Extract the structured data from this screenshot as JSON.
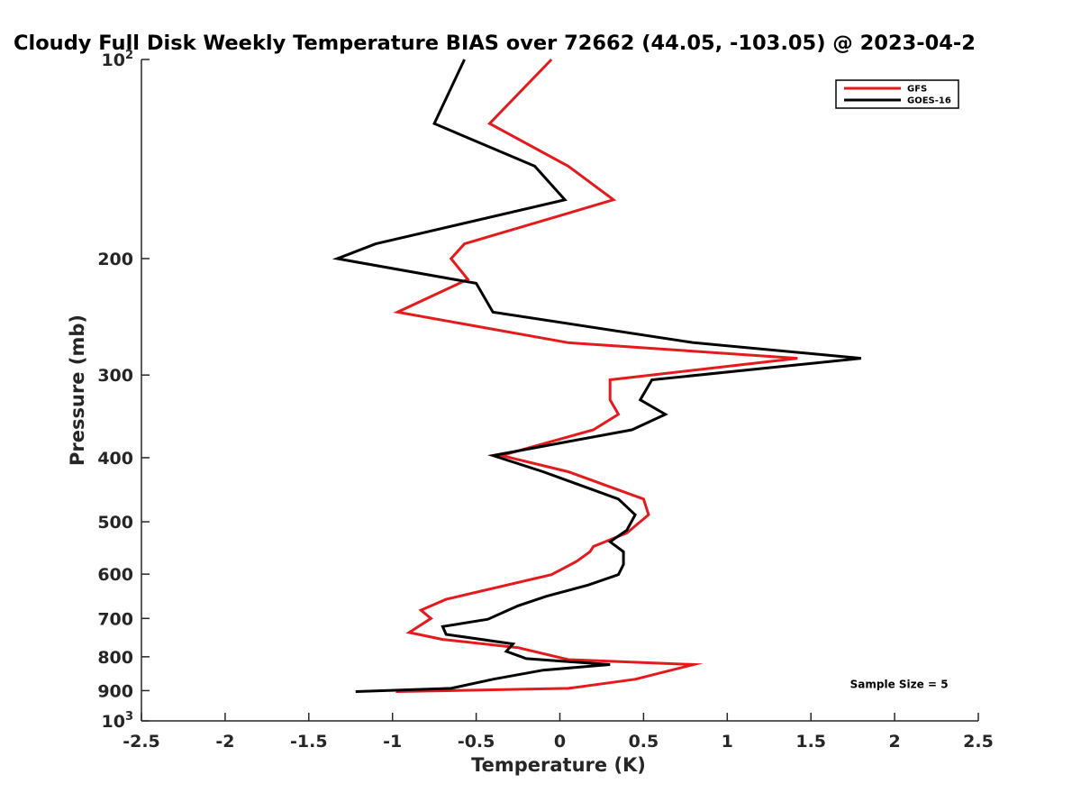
{
  "chart_data": {
    "type": "line",
    "title": "Cloudy Full Disk Weekly Temperature BIAS over 72662 (44.05, -103.05) @ 2023-04-2",
    "xlabel": "Temperature (K)",
    "ylabel": "Pressure (mb)",
    "xlim": [
      -2.5,
      2.5
    ],
    "ylim": [
      100,
      1000
    ],
    "yscale": "log",
    "yaxis_reversed": true,
    "grid": false,
    "legend_position": "top-right",
    "x_ticks": [
      "-2.5",
      "-2",
      "-1.5",
      "-1",
      "-0.5",
      "0",
      "0.5",
      "1",
      "1.5",
      "2",
      "2.5"
    ],
    "x_tick_values": [
      -2.5,
      -2,
      -1.5,
      -1,
      -0.5,
      0,
      0.5,
      1,
      1.5,
      2,
      2.5
    ],
    "y_ticks": [
      {
        "value": 100,
        "base": "10",
        "exp": "2",
        "label": ""
      },
      {
        "value": 200,
        "label": "200"
      },
      {
        "value": 300,
        "label": "300"
      },
      {
        "value": 400,
        "label": "400"
      },
      {
        "value": 500,
        "label": "500"
      },
      {
        "value": 600,
        "label": "600"
      },
      {
        "value": 700,
        "label": "700"
      },
      {
        "value": 800,
        "label": "800"
      },
      {
        "value": 900,
        "label": "900"
      },
      {
        "value": 1000,
        "base": "10",
        "exp": "3",
        "label": ""
      }
    ],
    "series": [
      {
        "name": "GFS",
        "color": "#e41a1c",
        "points": [
          [
            -0.05,
            100
          ],
          [
            -0.42,
            125
          ],
          [
            0.05,
            145
          ],
          [
            0.32,
            163
          ],
          [
            -0.57,
            190
          ],
          [
            -0.65,
            200
          ],
          [
            -0.55,
            215
          ],
          [
            -0.97,
            241
          ],
          [
            0.05,
            268
          ],
          [
            1.42,
            283
          ],
          [
            0.3,
            305
          ],
          [
            0.3,
            327
          ],
          [
            0.35,
            344
          ],
          [
            0.2,
            363
          ],
          [
            -0.35,
            397
          ],
          [
            0.05,
            420
          ],
          [
            0.5,
            462
          ],
          [
            0.53,
            488
          ],
          [
            0.4,
            520
          ],
          [
            0.2,
            545
          ],
          [
            0.18,
            555
          ],
          [
            0.1,
            574
          ],
          [
            -0.05,
            601
          ],
          [
            -0.68,
            655
          ],
          [
            -0.83,
            680
          ],
          [
            -0.77,
            700
          ],
          [
            -0.9,
            735
          ],
          [
            -0.7,
            753
          ],
          [
            -0.25,
            775
          ],
          [
            0.05,
            808
          ],
          [
            0.8,
            822
          ],
          [
            0.65,
            840
          ],
          [
            0.45,
            865
          ],
          [
            0.05,
            893
          ],
          [
            -0.98,
            903
          ]
        ]
      },
      {
        "name": "GOES-16",
        "color": "#000000",
        "points": [
          [
            -0.57,
            100
          ],
          [
            -0.75,
            125
          ],
          [
            -0.15,
            145
          ],
          [
            0.03,
            163
          ],
          [
            -1.1,
            190
          ],
          [
            -1.33,
            200
          ],
          [
            -0.5,
            218
          ],
          [
            -0.4,
            241
          ],
          [
            0.8,
            268
          ],
          [
            1.8,
            283
          ],
          [
            0.55,
            305
          ],
          [
            0.48,
            327
          ],
          [
            0.63,
            344
          ],
          [
            0.43,
            363
          ],
          [
            -0.4,
            397
          ],
          [
            -0.1,
            420
          ],
          [
            0.35,
            462
          ],
          [
            0.45,
            488
          ],
          [
            0.4,
            515
          ],
          [
            0.3,
            536
          ],
          [
            0.38,
            555
          ],
          [
            0.38,
            580
          ],
          [
            0.35,
            601
          ],
          [
            0.17,
            623
          ],
          [
            -0.08,
            648
          ],
          [
            -0.25,
            670
          ],
          [
            -0.33,
            684
          ],
          [
            -0.43,
            702
          ],
          [
            -0.7,
            720
          ],
          [
            -0.68,
            740
          ],
          [
            -0.28,
            765
          ],
          [
            -0.32,
            785
          ],
          [
            -0.2,
            805
          ],
          [
            0.3,
            822
          ],
          [
            -0.1,
            838
          ],
          [
            -0.4,
            865
          ],
          [
            -0.65,
            893
          ],
          [
            -1.22,
            903
          ]
        ]
      }
    ],
    "annotations": [
      {
        "text": "Sample Size = 5",
        "x": 1.75,
        "y": 880
      }
    ]
  }
}
